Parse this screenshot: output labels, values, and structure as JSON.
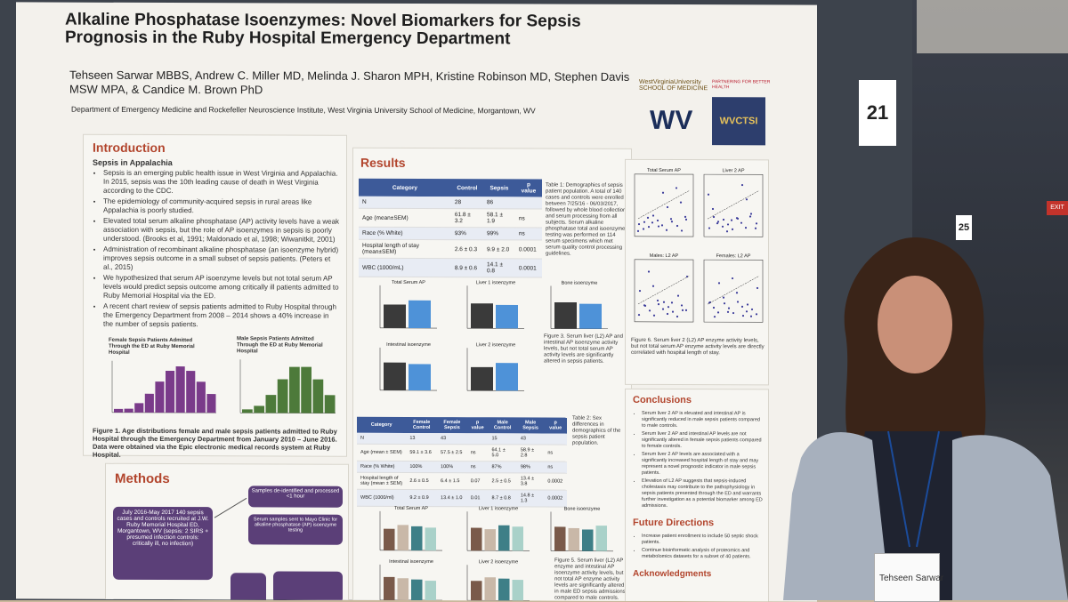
{
  "poster": {
    "title": "Alkaline Phosphatase Isoenzymes: Novel Biomarkers for Sepsis Prognosis in the Ruby Hospital Emergency Department",
    "authors": "Tehseen Sarwar MBBS, Andrew C. Miller MD, Melinda J. Sharon MPH, Kristine Robinson MD, Stephen Davis MSW MPA, & Candice M. Brown PhD",
    "affiliation": "Department of Emergency Medicine and Rockefeller Neuroscience Institute, West Virginia University School of Medicine, Morgantown, WV",
    "logo_wvu": "WestVirginiaUniversity SCHOOL OF MEDICINE",
    "logo_wv": "WV",
    "logo_ctsi": "WVCTSI",
    "logo_ctsi_tag": "PARTNERING FOR BETTER HEALTH",
    "intro_head": "Introduction",
    "intro_sub": "Sepsis in Appalachia",
    "intro_points": [
      "Sepsis is an emerging public health issue in West Virginia and Appalachia. In 2015, sepsis was the 10th leading cause of death in West Virginia according to the CDC.",
      "The epidemiology of community-acquired sepsis in rural areas like Appalachia is poorly studied.",
      "Elevated total serum alkaline phosphatase (AP) activity levels have a weak association with sepsis, but the role of AP isoenzymes in sepsis is poorly understood. (Brooks et al, 1991; Maldonado et al, 1998; Wiwanitkit, 2001)",
      "Administration of recombinant alkaline phosphatase (an isoenzyme hybrid) improves sepsis outcome in a small subset of sepsis patients. (Peters et al., 2015)",
      "We hypothesized that serum AP isoenzyme levels but not total serum AP levels would predict sepsis outcome among critically ill patients admitted to Ruby Memorial Hospital via the ED.",
      "A recent chart review of sepsis patients admitted to Ruby Hospital through the Emergency Department from 2008 – 2014 shows a 40% increase in the number of sepsis patients."
    ],
    "fig1_title_f": "Female Sepsis Patients Admitted Through the ED at Ruby Memorial Hospital",
    "fig1_title_m": "Male Sepsis Patients Admitted Through the ED at Ruby Memorial Hospital",
    "fig1_caption": "Figure 1. Age distributions female and male sepsis patients admitted to Ruby Hospital through the Emergency Department from January 2010 – June 2016. Data were obtained via the Epic electronic medical records system at Ruby Hospital.",
    "methods_head": "Methods",
    "methods_box1": "July 2016-May 2017 140 sepsis cases and controls recruited at J.W. Ruby Memorial Hospital ED, Morgantown, WV (sepsis: 2 SIRS + presumed infection controls: critically ill, no infection)",
    "methods_box2": "Samples de-identified and processed <1 hour",
    "methods_box3": "Serum samples sent to Mayo Clinic for alkaline phosphatase (AP) isoenzyme testing",
    "results_head": "Results",
    "table1": {
      "headers": [
        "Category",
        "Control",
        "Sepsis",
        "p value"
      ],
      "rows": [
        [
          "N",
          "28",
          "86",
          ""
        ],
        [
          "Age (mean±SEM)",
          "61.8 ± 3.2",
          "58.1 ± 1.9",
          "ns"
        ],
        [
          "Race (% White)",
          "93%",
          "99%",
          "ns"
        ],
        [
          "Hospital length of stay (mean±SEM)",
          "2.6 ± 0.3",
          "9.9 ± 2.0",
          "0.0001"
        ],
        [
          "WBC (1000/mL)",
          "8.9 ± 0.6",
          "14.1 ± 0.8",
          "0.0001"
        ]
      ]
    },
    "table1_caption": "Table 1: Demographics of sepsis patient population. A total of 140 cases and controls were enrolled between 7/25/16 - 06/03/2017, followed by whole blood collection and serum processing from all subjects. Serum alkaline phosphatase total and isoenzyme testing was performed on 114 serum specimens which met serum quality control processing guidelines.",
    "fig3_titles": [
      "Total Serum AP",
      "Liver 1 isoenzyme",
      "Bone isoenzyme",
      "Intestinal isoenzyme",
      "Liver 2 isoenzyme"
    ],
    "fig3_caption": "Figure 3. Serum liver (L2) AP and intestinal AP isoenzyme activity levels, but not total serum AP activity levels are significantly altered in sepsis patients.",
    "table2": {
      "headers": [
        "Category",
        "Female Control",
        "Female Sepsis",
        "p value",
        "Male Control",
        "Male Sepsis",
        "p value"
      ],
      "rows": [
        [
          "N",
          "13",
          "43",
          "",
          "15",
          "43",
          ""
        ],
        [
          "Age (mean ± SEM)",
          "59.1 ± 3.6",
          "57.5 ± 2.5",
          "ns",
          "64.1 ± 5.0",
          "58.9 ± 2.8",
          "ns"
        ],
        [
          "Race (% White)",
          "100%",
          "100%",
          "ns",
          "87%",
          "98%",
          "ns"
        ],
        [
          "Hospital length of stay (mean ± SEM)",
          "2.6 ± 0.5",
          "6.4 ± 1.5",
          "0.07",
          "2.5 ± 0.5",
          "13.4 ± 3.8",
          "0.0002"
        ],
        [
          "WBC (1000/ml)",
          "9.2 ± 0.9",
          "13.4 ± 1.0",
          "0.01",
          "8.7 ± 0.8",
          "14.8 ± 1.3",
          "0.0002"
        ]
      ]
    },
    "table2_caption": "Table 2: Sex differences in demographics of the sepsis patient population.",
    "fig6_titles": [
      "Total Serum AP",
      "Liver 2 AP",
      "Males: L2 AP",
      "Females: L2 AP"
    ],
    "fig6_caption": "Figure 6. Serum liver 2 (L2) AP enzyme activity levels, but not total serum AP enzyme activity levels are directly correlated with hospital length of stay.",
    "conclusions_head": "Conclusions",
    "conclusions": [
      "Serum liver 2 AP is elevated and intestinal AP is significantly reduced in male sepsis patients compared to male controls.",
      "Serum liver 2 AP and intestinal AP levels are not significantly altered in female sepsis patients compared to female controls.",
      "Serum liver 2 AP levels are associated with a significantly increased hospital length of stay and may represent a novel prognostic indicator in male sepsis patients.",
      "Elevation of L2 AP suggests that sepsis-induced cholestasis may contribute to the pathophysiology in sepsis patients presented through the ED and warrants further investigation as a potential biomarker among ED admissions."
    ],
    "future_head": "Future Directions",
    "future": [
      "Increase patient enrollment to include 50 septic shock patients.",
      "Continue bioinformatic analysis of proteomics and metabolomics datasets for a subset of 40 patients."
    ],
    "ack_head": "Acknowledgments",
    "fig5_titles": [
      "Total Serum AP",
      "Liver 1 isoenzyme",
      "Bone isoenzyme",
      "Intestinal isoenzyme",
      "Liver 2 isoenzyme"
    ],
    "fig5_caption": "Figure 5. Serum liver (L2) AP enzyme and intestinal AP isoenzyme activity levels, but not total AP enzyme activity levels are significantly altered in male ED sepsis admissions compared to male controls."
  },
  "scene": {
    "board_number": "21",
    "board_number_2": "25",
    "exit_sign": "EXIT",
    "badge_name": "Tehseen Sarwar"
  },
  "colors": {
    "header_blue": "#3d5a99",
    "section_red": "#b2452d",
    "methods_purple": "#5b3f78",
    "bar_dark": "#3a3a3a",
    "bar_blue": "#4e92d8",
    "hist_purple": "#7a3b8a",
    "hist_green": "#4d7a3a"
  }
}
